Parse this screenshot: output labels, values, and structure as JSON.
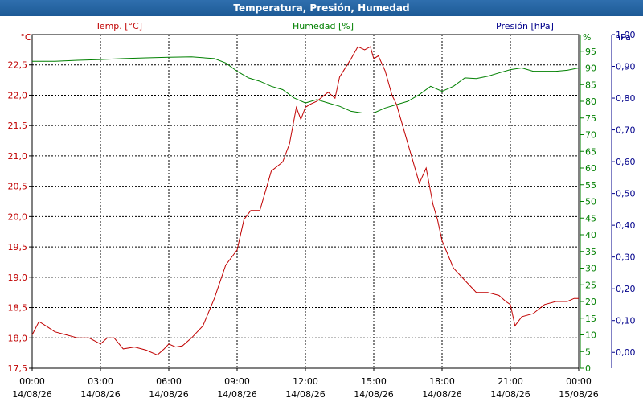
{
  "window": {
    "title": "Temperatura, Presión, Humedad"
  },
  "chart_data": {
    "type": "line",
    "title": "Temperatura, Presión, Humedad",
    "grid": true,
    "x_ticks": [
      {
        "hour": 0,
        "time": "00:00",
        "date": "14/08/26"
      },
      {
        "hour": 3,
        "time": "03:00",
        "date": "14/08/26"
      },
      {
        "hour": 6,
        "time": "06:00",
        "date": "14/08/26"
      },
      {
        "hour": 9,
        "time": "09:00",
        "date": "14/08/26"
      },
      {
        "hour": 12,
        "time": "12:00",
        "date": "14/08/26"
      },
      {
        "hour": 15,
        "time": "15:00",
        "date": "14/08/26"
      },
      {
        "hour": 18,
        "time": "18:00",
        "date": "14/08/26"
      },
      {
        "hour": 21,
        "time": "21:00",
        "date": "14/08/26"
      },
      {
        "hour": 24,
        "time": "00:00",
        "date": "15/08/26"
      }
    ],
    "x_range": [
      0,
      24
    ],
    "axes": {
      "temperature": {
        "label": "Temp. [°C]",
        "unit": "°C",
        "color": "#c00000",
        "range": [
          17.5,
          23.0
        ],
        "ticks": [
          17.5,
          18.0,
          18.5,
          19.0,
          19.5,
          20.0,
          20.5,
          21.0,
          21.5,
          22.0,
          22.5
        ],
        "tick_labels": [
          "17,5",
          "18,0",
          "18,5",
          "19,0",
          "19,5",
          "20,0",
          "20,5",
          "21,0",
          "21,5",
          "22,0",
          "22,5"
        ]
      },
      "humidity": {
        "label": "Humedad [%]",
        "unit": "%",
        "color": "#008000",
        "range": [
          0,
          100
        ],
        "ticks": [
          0,
          5,
          10,
          15,
          20,
          25,
          30,
          35,
          40,
          45,
          50,
          55,
          60,
          65,
          70,
          75,
          80,
          85,
          90,
          95
        ],
        "tick_labels": [
          "0",
          "5",
          "10",
          "15",
          "20",
          "25",
          "30",
          "35",
          "40",
          "45",
          "50",
          "55",
          "60",
          "65",
          "70",
          "75",
          "80",
          "85",
          "90",
          "95"
        ]
      },
      "pressure": {
        "label": "Presión [hPa]",
        "unit": "hPa",
        "color": "#00008b",
        "range": [
          -0.05,
          1.0
        ],
        "ticks": [
          0.0,
          0.1,
          0.2,
          0.3,
          0.4,
          0.5,
          0.6,
          0.7,
          0.8,
          0.9,
          1.0
        ],
        "tick_labels": [
          "0,00",
          "0,10",
          "0,20",
          "0,30",
          "0,40",
          "0,50",
          "0,60",
          "0,70",
          "0,80",
          "0,90",
          "1,00"
        ]
      }
    },
    "series": [
      {
        "name": "Temp. [°C]",
        "axis": "temperature",
        "color": "#c00000",
        "x": [
          0,
          0.3,
          0.6,
          1.0,
          1.5,
          2.0,
          2.5,
          3.0,
          3.3,
          3.6,
          4.0,
          4.5,
          5.0,
          5.5,
          5.8,
          6.0,
          6.3,
          6.6,
          7.0,
          7.5,
          8.0,
          8.5,
          9.0,
          9.3,
          9.6,
          10.0,
          10.5,
          11.0,
          11.3,
          11.6,
          11.8,
          12.0,
          12.2,
          12.5,
          13.0,
          13.3,
          13.5,
          14.0,
          14.3,
          14.6,
          14.85,
          15.0,
          15.2,
          15.5,
          15.8,
          16.0,
          16.5,
          17.0,
          17.3,
          17.6,
          17.8,
          18.0,
          18.5,
          19.0,
          19.5,
          20.0,
          20.5,
          20.8,
          21.0,
          21.2,
          21.5,
          22.0,
          22.5,
          23.0,
          23.5,
          23.8,
          24.0
        ],
        "y": [
          18.05,
          18.27,
          18.2,
          18.1,
          18.05,
          18.0,
          18.0,
          17.9,
          18.0,
          18.0,
          17.82,
          17.85,
          17.8,
          17.72,
          17.82,
          17.9,
          17.85,
          17.87,
          18.0,
          18.2,
          18.65,
          19.2,
          19.45,
          19.95,
          20.1,
          20.1,
          20.75,
          20.9,
          21.2,
          21.8,
          21.6,
          21.8,
          21.85,
          21.9,
          22.05,
          21.95,
          22.3,
          22.6,
          22.8,
          22.75,
          22.8,
          22.6,
          22.65,
          22.4,
          22.0,
          21.85,
          21.2,
          20.55,
          20.8,
          20.2,
          19.95,
          19.6,
          19.15,
          18.95,
          18.75,
          18.75,
          18.7,
          18.6,
          18.55,
          18.2,
          18.35,
          18.4,
          18.55,
          18.6,
          18.6,
          18.65,
          18.65
        ]
      },
      {
        "name": "Humedad [%]",
        "axis": "humidity",
        "color": "#008000",
        "x": [
          0,
          1,
          2,
          3,
          4,
          5,
          6,
          7,
          8,
          8.5,
          9,
          9.5,
          10,
          10.5,
          11,
          11.5,
          12,
          12.5,
          13,
          13.5,
          14,
          14.5,
          15,
          15.5,
          16,
          16.5,
          17,
          17.5,
          18,
          18.5,
          19,
          19.5,
          20,
          20.5,
          21,
          21.5,
          22,
          22.5,
          23,
          23.5,
          24
        ],
        "y": [
          92,
          92,
          92.3,
          92.5,
          92.8,
          93,
          93.2,
          93.3,
          92.8,
          91.5,
          89,
          87,
          86,
          84.5,
          83.5,
          81,
          79.5,
          80.5,
          79.5,
          78.5,
          77,
          76.5,
          76.5,
          78,
          79,
          80,
          82,
          84.5,
          83,
          84.5,
          87,
          86.8,
          87.5,
          88.5,
          89.5,
          90,
          89,
          89,
          89,
          89.3,
          90
        ]
      }
    ]
  }
}
